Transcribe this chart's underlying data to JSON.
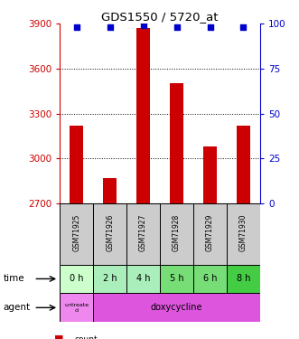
{
  "title": "GDS1550 / 5720_at",
  "samples": [
    "GSM71925",
    "GSM71926",
    "GSM71927",
    "GSM71928",
    "GSM71929",
    "GSM71930"
  ],
  "counts": [
    3220,
    2870,
    3870,
    3500,
    3080,
    3220
  ],
  "percentiles": [
    98,
    98,
    99,
    98,
    98,
    98
  ],
  "time_labels": [
    "0 h",
    "2 h",
    "4 h",
    "5 h",
    "6 h",
    "8 h"
  ],
  "ylim_left": [
    2700,
    3900
  ],
  "ylim_right": [
    0,
    100
  ],
  "yticks_left": [
    2700,
    3000,
    3300,
    3600,
    3900
  ],
  "yticks_right": [
    0,
    25,
    50,
    75,
    100
  ],
  "bar_color": "#cc0000",
  "dot_color": "#0000cc",
  "time_colors": [
    "#ccffcc",
    "#aaeebb",
    "#aaeebb",
    "#77dd77",
    "#77dd77",
    "#44cc44"
  ],
  "gsm_bg": "#cccccc",
  "left_axis_color": "#cc0000",
  "right_axis_color": "#0000cc",
  "agent_color_0": "#ee88ee",
  "agent_color_1": "#dd55dd",
  "bar_width": 0.4
}
